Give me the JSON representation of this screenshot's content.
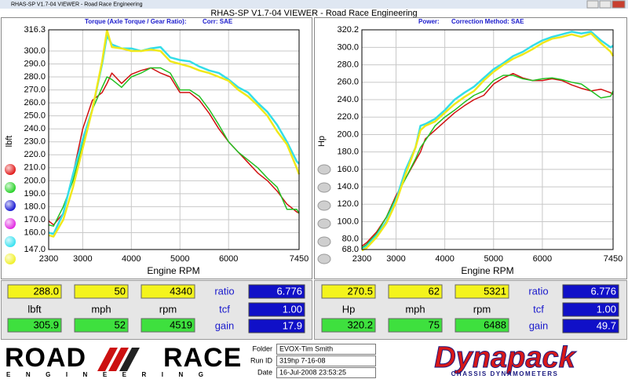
{
  "window": {
    "title": "RHAS-SP V1.7-04  VIEWER - Road Race Engineering"
  },
  "header": {
    "title": "RHAS-SP V1.7-04  VIEWER - Road Race Engineering"
  },
  "chart_data": [
    {
      "type": "line",
      "subtitle": [
        "Torque (Axle Torque / Gear Ratio):",
        "Corr: SAE"
      ],
      "xlabel": "Engine RPM",
      "ylabel": "lbft",
      "grid": true,
      "x": [
        2300,
        2400,
        2600,
        2800,
        3000,
        3200,
        3400,
        3500,
        3600,
        3800,
        4000,
        4200,
        4400,
        4600,
        4800,
        5000,
        5200,
        5400,
        5600,
        5800,
        6000,
        6200,
        6400,
        6600,
        6800,
        7000,
        7200,
        7400,
        7450
      ],
      "xlim": [
        2300,
        7450
      ],
      "xticks": [
        2300,
        3000,
        4000,
        5000,
        6000,
        7450
      ],
      "ylim": [
        147.0,
        316.3
      ],
      "yticks": [
        316.3,
        {
          "value": 300,
          "label": "300.0"
        },
        {
          "value": 290,
          "label": "290.0"
        },
        {
          "value": 280,
          "label": "280.0"
        },
        {
          "value": 270,
          "label": "270.0"
        },
        {
          "value": 260,
          "label": "260.0"
        },
        {
          "value": 250,
          "label": "250.0"
        },
        {
          "value": 240,
          "label": "240.0"
        },
        {
          "value": 230,
          "label": "230.0"
        },
        {
          "value": 220,
          "label": "220.0"
        },
        {
          "value": 210,
          "label": "210.0"
        },
        {
          "value": 200,
          "label": "200.0"
        },
        {
          "value": 190,
          "label": "190.0"
        },
        {
          "value": 180,
          "label": "180.0"
        },
        {
          "value": 170,
          "label": "170.0"
        },
        {
          "value": 160,
          "label": "160.0"
        },
        {
          "value": 147,
          "label": "147.0"
        }
      ],
      "series": [
        {
          "color": "#d01010",
          "values": [
            169,
            166,
            175,
            205,
            240,
            262,
            268,
            275,
            283,
            275,
            282,
            285,
            287,
            283,
            280,
            268,
            268,
            262,
            252,
            240,
            230,
            222,
            214,
            206,
            200,
            192,
            182,
            176,
            175
          ]
        },
        {
          "color": "#22c022",
          "values": [
            166,
            165,
            180,
            200,
            228,
            255,
            272,
            280,
            278,
            272,
            280,
            283,
            287,
            287,
            283,
            270,
            270,
            265,
            255,
            243,
            230,
            222,
            216,
            210,
            202,
            195,
            178,
            178,
            175
          ]
        },
        {
          "color": "#33dde8",
          "values": [
            160,
            159,
            175,
            205,
            232,
            255,
            290,
            312,
            305,
            302,
            302,
            300,
            302,
            303,
            295,
            293,
            292,
            288,
            285,
            283,
            278,
            272,
            268,
            260,
            253,
            243,
            230,
            215,
            213
          ]
        },
        {
          "color": "#f0e81a",
          "values": [
            158,
            157,
            170,
            195,
            225,
            255,
            292,
            316,
            303,
            302,
            300,
            300,
            301,
            300,
            292,
            290,
            288,
            285,
            283,
            280,
            277,
            270,
            265,
            258,
            250,
            238,
            228,
            210,
            205
          ]
        }
      ]
    },
    {
      "type": "line",
      "subtitle": [
        "Power:",
        "Correction Method: SAE"
      ],
      "xlabel": "Engine RPM",
      "ylabel": "Hp",
      "grid": true,
      "x": [
        2300,
        2400,
        2600,
        2800,
        3000,
        3200,
        3400,
        3500,
        3600,
        3800,
        4000,
        4200,
        4400,
        4600,
        4800,
        5000,
        5200,
        5400,
        5600,
        5800,
        6000,
        6200,
        6400,
        6600,
        6800,
        7000,
        7200,
        7400,
        7450
      ],
      "xlim": [
        2300,
        7450
      ],
      "xticks": [
        2300,
        3000,
        4000,
        5000,
        6000,
        7450
      ],
      "ylim": [
        68.0,
        320.2
      ],
      "yticks": [
        320.2,
        {
          "value": 300,
          "label": "300.0"
        },
        {
          "value": 280,
          "label": "280.0"
        },
        {
          "value": 260,
          "label": "260.0"
        },
        {
          "value": 240,
          "label": "240.0"
        },
        {
          "value": 220,
          "label": "220.0"
        },
        {
          "value": 200,
          "label": "200.0"
        },
        {
          "value": 180,
          "label": "180.0"
        },
        {
          "value": 160,
          "label": "160.0"
        },
        {
          "value": 140,
          "label": "140.0"
        },
        {
          "value": 120,
          "label": "120.0"
        },
        {
          "value": 100,
          "label": "100.0"
        },
        {
          "value": 80,
          "label": "80.0"
        },
        {
          "value": 68,
          "label": "68.0"
        }
      ],
      "series": [
        {
          "color": "#d01010",
          "values": [
            72,
            76,
            88,
            105,
            130,
            150,
            170,
            180,
            195,
            205,
            215,
            225,
            233,
            240,
            245,
            258,
            265,
            270,
            265,
            262,
            262,
            264,
            262,
            257,
            253,
            250,
            252,
            248,
            246
          ]
        },
        {
          "color": "#22c022",
          "values": [
            70,
            74,
            86,
            105,
            128,
            150,
            172,
            185,
            193,
            210,
            220,
            228,
            237,
            245,
            250,
            262,
            268,
            268,
            264,
            262,
            264,
            265,
            263,
            260,
            258,
            250,
            242,
            244,
            250
          ]
        },
        {
          "color": "#33dde8",
          "values": [
            68,
            72,
            84,
            100,
            125,
            160,
            185,
            210,
            212,
            218,
            228,
            240,
            248,
            255,
            265,
            275,
            282,
            290,
            295,
            302,
            308,
            312,
            315,
            318,
            316,
            318,
            308,
            300,
            302
          ]
        },
        {
          "color": "#f0e81a",
          "values": [
            67,
            70,
            82,
            98,
            122,
            155,
            185,
            205,
            210,
            215,
            225,
            235,
            243,
            250,
            262,
            272,
            280,
            287,
            292,
            298,
            305,
            310,
            312,
            315,
            312,
            316,
            305,
            295,
            290
          ]
        }
      ]
    }
  ],
  "readouts": [
    {
      "top": [
        "288.0",
        "50",
        "4340"
      ],
      "labels": [
        "lbft",
        "mph",
        "rpm"
      ],
      "bottom": [
        "305.9",
        "52",
        "4519"
      ],
      "params": [
        {
          "label": "ratio",
          "value": "6.776"
        },
        {
          "label": "tcf",
          "value": "1.00"
        },
        {
          "label": "gain",
          "value": "17.9"
        }
      ]
    },
    {
      "top": [
        "270.5",
        "62",
        "5321"
      ],
      "labels": [
        "Hp",
        "mph",
        "rpm"
      ],
      "bottom": [
        "320.2",
        "75",
        "6488"
      ],
      "params": [
        {
          "label": "ratio",
          "value": "6.776"
        },
        {
          "label": "tcf",
          "value": "1.00"
        },
        {
          "label": "gain",
          "value": "49.7"
        }
      ]
    }
  ],
  "footer": {
    "logo": {
      "left": "ROAD",
      "right": "RACE",
      "sub": "ENGINEERING"
    },
    "fields": [
      {
        "label": "Folder",
        "value": "EVOX-Tim Smith"
      },
      {
        "label": "Run ID",
        "value": "319hp 7-16-08"
      },
      {
        "label": "Date",
        "value": "16-Jul-2008  23:53:25"
      }
    ],
    "brand": "Dynapack",
    "brand_sub": "CHASSIS DYNAMOMETERS"
  }
}
